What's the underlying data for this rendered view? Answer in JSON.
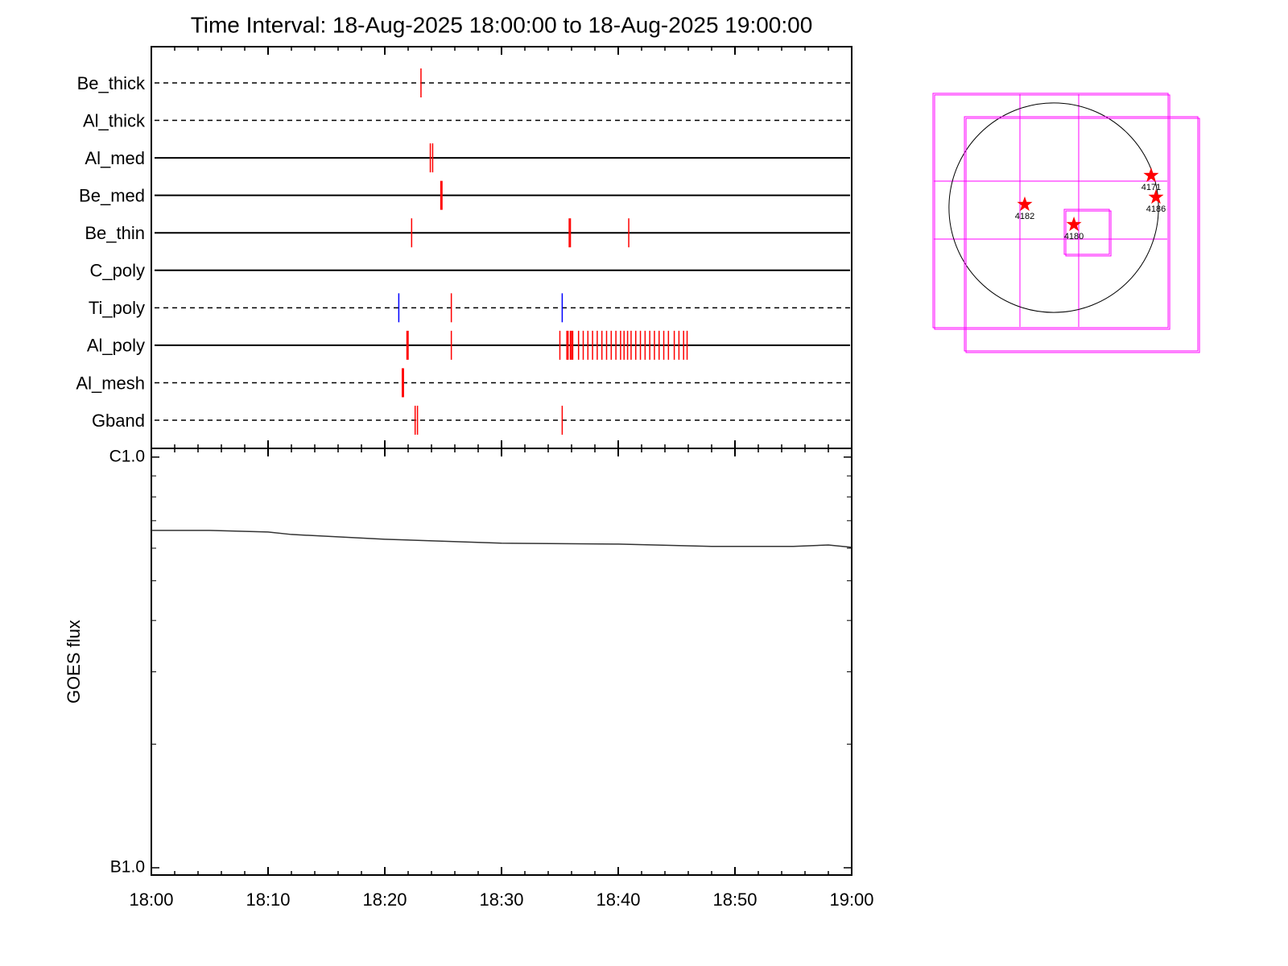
{
  "chart_data": [
    {
      "type": "timeline",
      "title": "Time Interval: 18-Aug-2025 18:00:00 to 18-Aug-2025 19:00:00",
      "categories": [
        "Be_thick",
        "Al_thick",
        "Al_med",
        "Be_med",
        "Be_thin",
        "C_poly",
        "Ti_poly",
        "Al_poly",
        "Al_mesh",
        "Gband"
      ],
      "line_styles": [
        "dashed",
        "dashed",
        "solid",
        "solid",
        "solid",
        "solid",
        "dashed",
        "solid",
        "dashed",
        "dashed"
      ],
      "xlim": [
        0,
        60
      ],
      "events": [
        {
          "row": 0,
          "color": "#ff0000",
          "x": [
            23.1
          ]
        },
        {
          "row": 2,
          "color": "#ff0000",
          "x": [
            23.9,
            24.1
          ]
        },
        {
          "row": 3,
          "color": "#ff0000",
          "x": [
            24.8,
            24.9
          ]
        },
        {
          "row": 4,
          "color": "#ff0000",
          "x": [
            22.3,
            35.8,
            35.9,
            40.9
          ]
        },
        {
          "row": 6,
          "color": "#0000ff",
          "x": [
            21.2,
            35.2
          ]
        },
        {
          "row": 6,
          "color": "#ff0000",
          "x": [
            25.7
          ]
        },
        {
          "row": 7,
          "color": "#ff0000",
          "x": [
            21.9,
            22.0,
            25.7,
            35.0,
            35.6,
            35.7,
            35.9,
            36.0,
            36.1,
            36.6,
            37.0,
            37.4,
            37.8,
            38.2,
            38.6,
            39.0,
            39.4,
            39.8,
            40.2,
            40.5,
            40.8,
            41.1,
            41.5,
            41.9,
            42.3,
            42.7,
            43.1,
            43.5,
            43.9,
            44.3,
            44.8,
            45.2,
            45.6,
            45.9
          ]
        },
        {
          "row": 8,
          "color": "#ff0000",
          "x": [
            21.5,
            21.6
          ]
        },
        {
          "row": 9,
          "color": "#ff0000",
          "x": [
            22.6,
            22.8,
            35.2
          ]
        }
      ]
    },
    {
      "type": "line",
      "y_label": "GOES flux",
      "log_y": true,
      "xlim": [
        0,
        60
      ],
      "xticks": [
        {
          "value": 0,
          "label": "18:00"
        },
        {
          "value": 10,
          "label": "18:10"
        },
        {
          "value": 20,
          "label": "18:20"
        },
        {
          "value": 30,
          "label": "18:30"
        },
        {
          "value": 40,
          "label": "18:40"
        },
        {
          "value": 50,
          "label": "18:50"
        },
        {
          "value": 60,
          "label": "19:00"
        }
      ],
      "minor_xticks": [
        2,
        4,
        6,
        8,
        12,
        14,
        16,
        18,
        22,
        24,
        26,
        28,
        32,
        34,
        36,
        38,
        42,
        44,
        46,
        48,
        52,
        54,
        56,
        58
      ],
      "ylim": [
        9.6e-08,
        1.05e-06
      ],
      "yticks": [
        {
          "value": 1e-06,
          "label": "C1.0"
        },
        {
          "value": 1e-07,
          "label": "B1.0"
        }
      ],
      "minor_yticks": [
        2e-07,
        3e-07,
        4e-07,
        5e-07,
        6e-07,
        7e-07,
        8e-07,
        9e-07
      ],
      "color": "#333333",
      "x": [
        0,
        5,
        10,
        12,
        20,
        30,
        40,
        48,
        55,
        58,
        60
      ],
      "values": [
        6.63e-07,
        6.63e-07,
        6.57e-07,
        6.48e-07,
        6.31e-07,
        6.17e-07,
        6.14e-07,
        6.06e-07,
        6.06e-07,
        6.11e-07,
        6.03e-07
      ]
    },
    {
      "type": "map",
      "disk_radius": 950,
      "box_color": "#ff00ff",
      "boxes": [
        [
          -1095,
          1037,
          1037,
          -1088
        ],
        [
          -810,
          825,
          1307,
          -1299
        ],
        [
          95,
          -15,
          504,
          -423
        ]
      ],
      "color": "#ff0000",
      "x": [
        -263,
        183,
        883,
        927
      ],
      "y": [
        29,
        -153,
        292,
        95
      ],
      "labels": [
        "4182",
        "4180",
        "4171",
        "4186"
      ]
    }
  ]
}
